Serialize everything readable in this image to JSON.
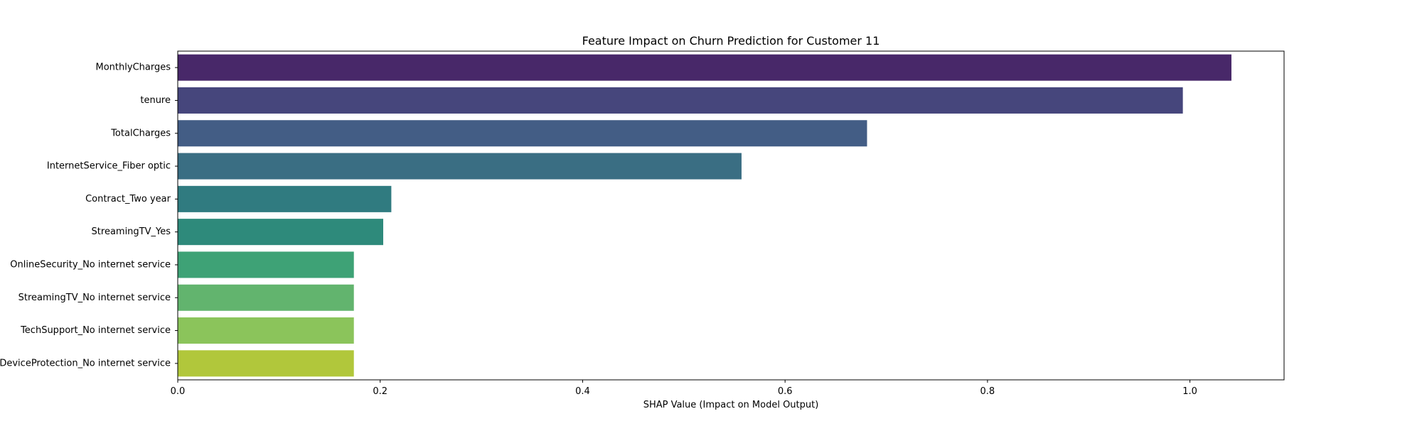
{
  "chart_data": {
    "type": "bar",
    "orientation": "horizontal",
    "title": "Feature Impact on Churn Prediction for Customer 11",
    "xlabel": "SHAP Value (Impact on Model Output)",
    "ylabel": "",
    "xlim": [
      0,
      1.093
    ],
    "xticks": [
      "0.0",
      "0.2",
      "0.4",
      "0.6",
      "0.8",
      "1.0"
    ],
    "xtick_values": [
      0.0,
      0.2,
      0.4,
      0.6,
      0.8,
      1.0
    ],
    "grid": false,
    "categories": [
      "MonthlyCharges",
      "tenure",
      "TotalCharges",
      "InternetService_Fiber optic",
      "Contract_Two year",
      "StreamingTV_Yes",
      "OnlineSecurity_No internet service",
      "StreamingTV_No internet service",
      "TechSupport_No internet service",
      "DeviceProtection_No internet service"
    ],
    "values": [
      1.041,
      0.993,
      0.681,
      0.557,
      0.211,
      0.203,
      0.174,
      0.174,
      0.174,
      0.174
    ],
    "colors": [
      "#482869",
      "#46467c",
      "#435d85",
      "#3a6e83",
      "#307b80",
      "#2e8a7b",
      "#3ea276",
      "#62b46e",
      "#8bc45b",
      "#b1c73b"
    ]
  }
}
